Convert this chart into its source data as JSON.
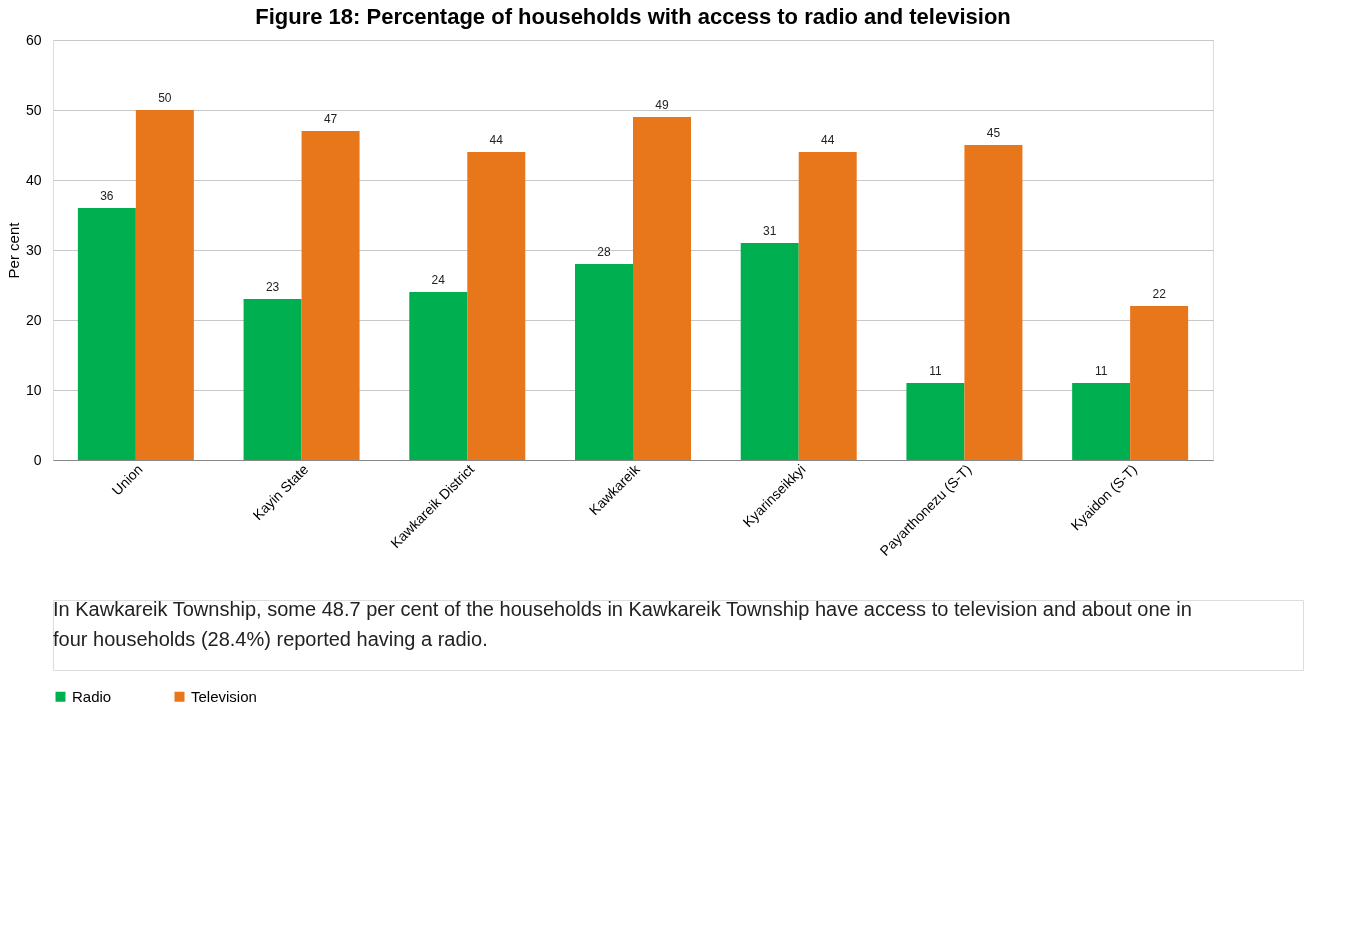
{
  "chart_data": {
    "type": "bar",
    "title": "Figure 18: Percentage of households with access to radio and television",
    "ylabel": "Per cent",
    "categories": [
      "Union",
      "Kayin State",
      "Kawkareik District",
      "Kawkareik",
      "Kyarinseikkyi",
      "Payarthonezu (S-T)",
      "Kyaidon (S-T)"
    ],
    "series": [
      {
        "name": "Radio",
        "color": "#00b050",
        "values": [
          36,
          23,
          24,
          28,
          31,
          11,
          11
        ]
      },
      {
        "name": "Television",
        "color": "#e8761a",
        "values": [
          50,
          47,
          44,
          49,
          44,
          45,
          22
        ]
      }
    ],
    "ylim": [
      0,
      60
    ],
    "yticks": [
      0,
      10,
      20,
      30,
      40,
      50,
      60
    ],
    "grid": "y",
    "legend": "bottom",
    "data_labels": true,
    "annotations": [
      "In Kawkareik Township, some 48.7 per cent of the households in Kawkareik Township have access to television and about one in four households (28.4%) reported having a radio."
    ]
  }
}
